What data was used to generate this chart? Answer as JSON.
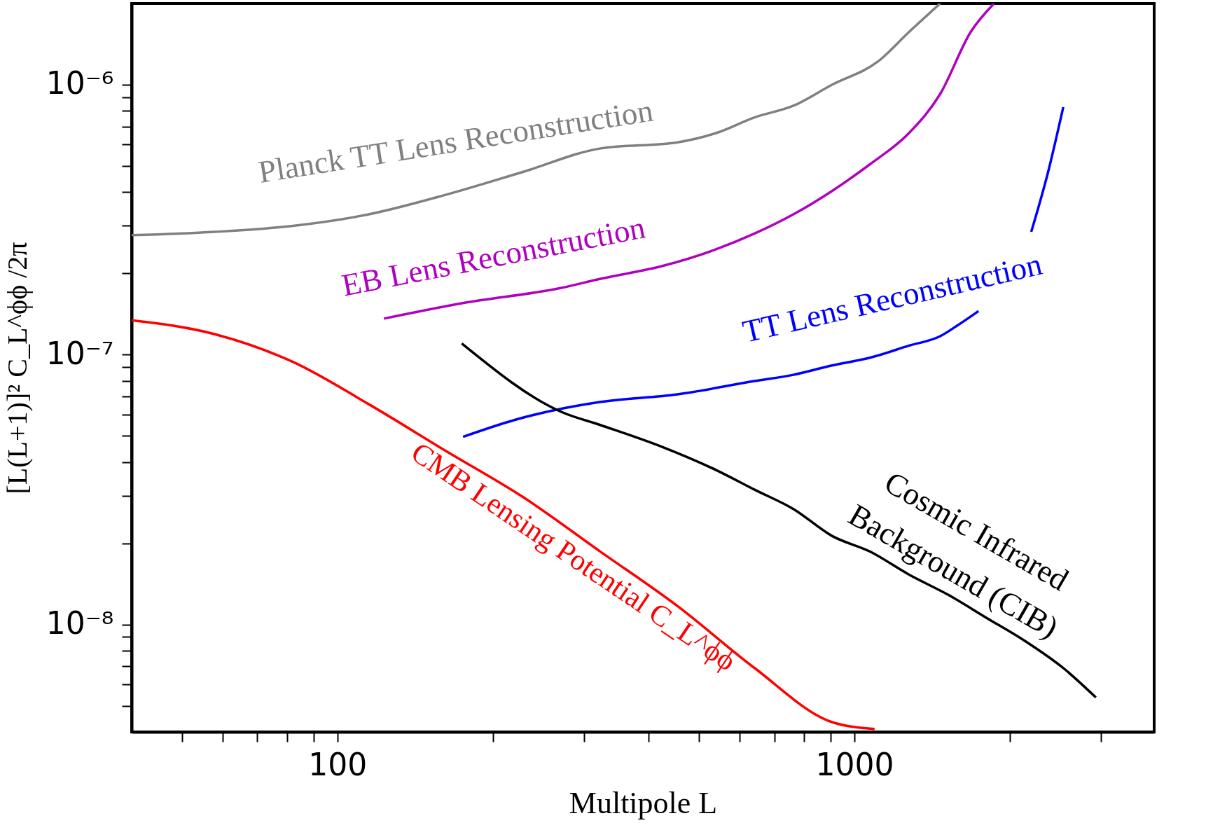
{
  "chart_data": {
    "type": "line",
    "log": "xy",
    "xlabel": "Multipole L",
    "ylabel": "[L(L+1)]² C_L^ϕϕ /2π",
    "xlim": [
      40,
      3800
    ],
    "ylim": [
      4e-09,
      2e-06
    ],
    "xticks": [
      {
        "value": 50,
        "label": null
      },
      {
        "value": 60,
        "label": null
      },
      {
        "value": 70,
        "label": null
      },
      {
        "value": 80,
        "label": null
      },
      {
        "value": 90,
        "label": null
      },
      100,
      {
        "value": 200,
        "label": null
      },
      {
        "value": 300,
        "label": null
      },
      {
        "value": 400,
        "label": null
      },
      {
        "value": 500,
        "label": null
      },
      {
        "value": 600,
        "label": null
      },
      {
        "value": 700,
        "label": null
      },
      {
        "value": 800,
        "label": null
      },
      {
        "value": 900,
        "label": null
      },
      1000,
      {
        "value": 2000,
        "label": null
      },
      {
        "value": 3000,
        "label": null
      }
    ],
    "yticks": [
      {
        "value": 5e-09,
        "label": null
      },
      {
        "value": 6e-09,
        "label": null
      },
      {
        "value": 7e-09,
        "label": null
      },
      {
        "value": 8e-09,
        "label": null
      },
      {
        "value": 9e-09,
        "label": null
      },
      {
        "value": 1e-08,
        "label": "10⁻⁸"
      },
      {
        "value": 2e-08,
        "label": null
      },
      {
        "value": 3e-08,
        "label": null
      },
      {
        "value": 4e-08,
        "label": null
      },
      {
        "value": 5e-08,
        "label": null
      },
      {
        "value": 6e-08,
        "label": null
      },
      {
        "value": 7e-08,
        "label": null
      },
      {
        "value": 8e-08,
        "label": null
      },
      {
        "value": 9e-08,
        "label": null
      },
      {
        "value": 1e-07,
        "label": "10⁻⁷"
      },
      {
        "value": 2e-07,
        "label": null
      },
      {
        "value": 3e-07,
        "label": null
      },
      {
        "value": 4e-07,
        "label": null
      },
      {
        "value": 5e-07,
        "label": null
      },
      {
        "value": 6e-07,
        "label": null
      },
      {
        "value": 7e-07,
        "label": null
      },
      {
        "value": 8e-07,
        "label": null
      },
      {
        "value": 9e-07,
        "label": null
      },
      {
        "value": 1e-06,
        "label": "10⁻⁶"
      }
    ],
    "grid": false,
    "line_style": "solid",
    "marker": "none",
    "series": [
      {
        "name": "Planck TT Lens Reconstruction",
        "color": "#808080",
        "x": [
          40,
          58,
          82,
          115,
          162,
          229,
          323,
          455,
          541,
          641,
          762,
          905,
          1111,
          1276,
          1465
        ],
        "values": [
          2.77e-07,
          2.85e-07,
          3e-07,
          3.31e-07,
          3.91e-07,
          4.76e-07,
          5.81e-07,
          6.12e-07,
          6.63e-07,
          7.57e-07,
          8.36e-07,
          1e-06,
          1.22e-06,
          1.57e-06,
          2e-06
        ]
      },
      {
        "name": "EB Lens Reconstruction",
        "color": "#b000c0",
        "x": [
          123,
          174,
          272,
          323,
          425,
          541,
          641,
          762,
          905,
          1074,
          1276,
          1465,
          1679,
          1862
        ],
        "values": [
          1.36e-07,
          1.55e-07,
          1.77e-07,
          1.91e-07,
          2.13e-07,
          2.46e-07,
          2.81e-07,
          3.31e-07,
          4.04e-07,
          5.09e-07,
          6.63e-07,
          9.24e-07,
          1.57e-06,
          2e-06
        ]
      },
      {
        "name": "TT Lens Reconstruction",
        "color": "#0000ff",
        "x": [
          175,
          221,
          323,
          455,
          641,
          762,
          905,
          1074,
          1276,
          1465,
          1570,
          1738,
          1950,
          2198,
          2370,
          2535
        ],
        "values": [
          4.96e-08,
          5.74e-08,
          6.68e-08,
          7.13e-08,
          7.98e-08,
          8.42e-08,
          9.12e-08,
          9.75e-08,
          1.08e-07,
          1.17e-07,
          1.27e-07,
          1.45e-07,
          null,
          2.85e-07,
          4.76e-07,
          8.26e-07
        ]
      },
      {
        "name": "CMB Lensing Potential C_L^ϕϕ",
        "color": "#ff0000",
        "x": [
          40,
          58,
          82,
          115,
          162,
          229,
          323,
          455,
          641,
          905,
          1094
        ],
        "values": [
          1.34e-07,
          1.19e-07,
          9.4e-08,
          6.55e-08,
          4.4e-08,
          2.96e-08,
          1.86e-08,
          1.17e-08,
          6.9e-09,
          4.35e-09,
          4.1e-09
        ]
      },
      {
        "name": "Cosmic Infrared Background (CIB)",
        "color": "#000000",
        "x": [
          174,
          272,
          323,
          425,
          541,
          641,
          762,
          905,
          1074,
          1276,
          1517,
          1799,
          2136,
          2535,
          2931
        ],
        "values": [
          1.1e-07,
          6.12e-08,
          5.48e-08,
          4.55e-08,
          3.73e-08,
          3.16e-08,
          2.68e-08,
          2.13e-08,
          1.86e-08,
          1.53e-08,
          1.29e-08,
          1.06e-08,
          8.7e-09,
          6.9e-09,
          5.37e-09
        ]
      }
    ]
  }
}
